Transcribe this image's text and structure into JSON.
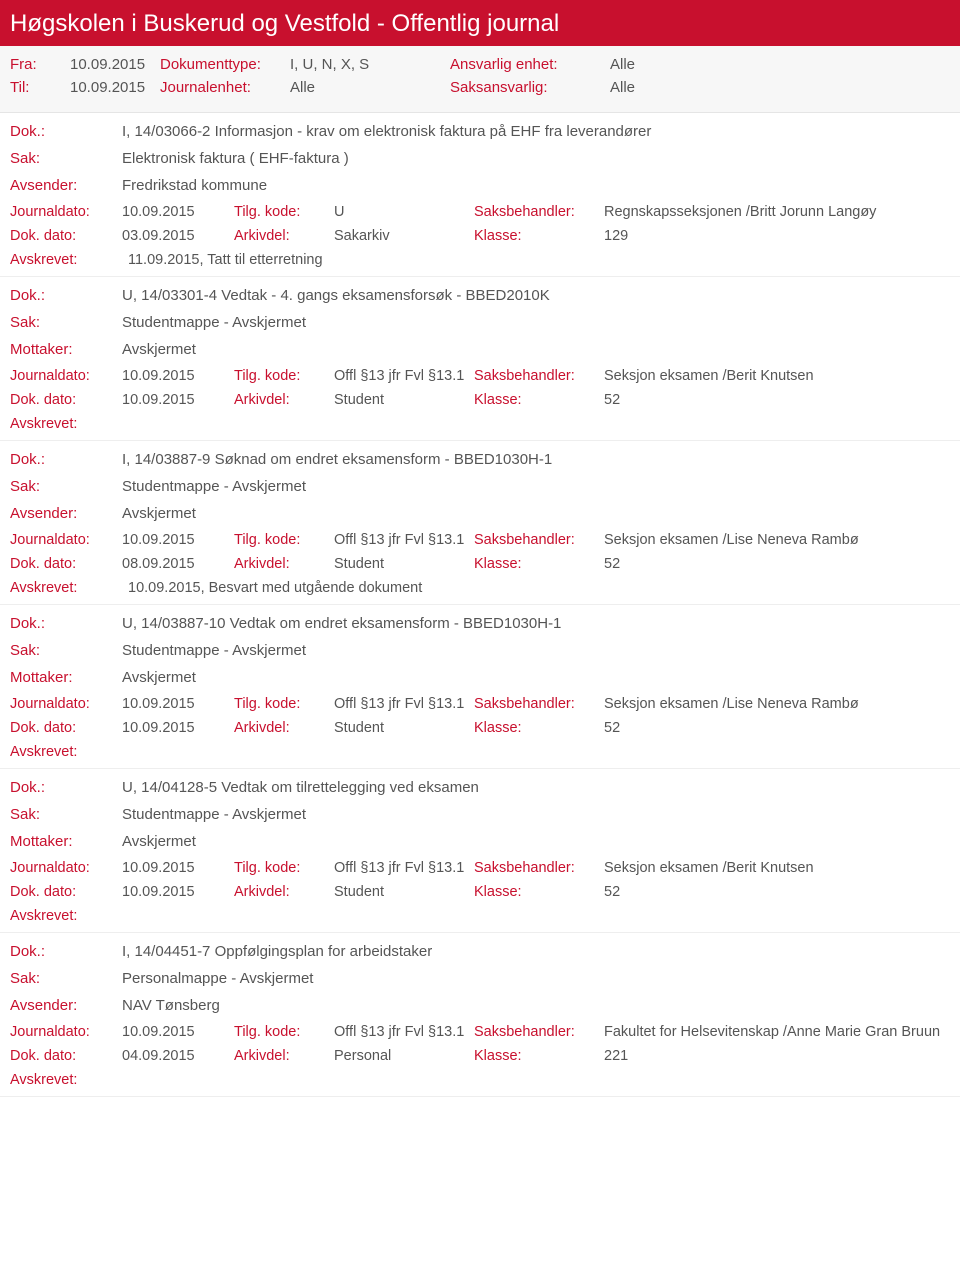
{
  "header": {
    "title": "Høgskolen i Buskerud og Vestfold - Offentlig journal"
  },
  "filters": {
    "fra_label": "Fra:",
    "fra_value": "10.09.2015",
    "til_label": "Til:",
    "til_value": "10.09.2015",
    "doktype_label": "Dokumenttype:",
    "doktype_value": "I, U, N, X, S",
    "journalenhet_label": "Journalenhet:",
    "journalenhet_value": "Alle",
    "ansvarlig_label": "Ansvarlig enhet:",
    "ansvarlig_value": "Alle",
    "saksansvarlig_label": "Saksansvarlig:",
    "saksansvarlig_value": "Alle"
  },
  "labels": {
    "dok": "Dok.:",
    "sak": "Sak:",
    "avsender": "Avsender:",
    "mottaker": "Mottaker:",
    "journaldato": "Journaldato:",
    "dokdato": "Dok. dato:",
    "tilgkode": "Tilg. kode:",
    "arkivdel": "Arkivdel:",
    "saksbehandler": "Saksbehandler:",
    "klasse": "Klasse:",
    "avskrevet": "Avskrevet:"
  },
  "entries": [
    {
      "dok": "I, 14/03066-2 Informasjon - krav om elektronisk faktura på EHF fra leverandører",
      "sak": "Elektronisk faktura ( EHF-faktura )",
      "party_label": "Avsender:",
      "party_value": "Fredrikstad kommune",
      "journaldato": "10.09.2015",
      "tilgkode": "U",
      "saksbehandler": "Regnskapsseksjonen /Britt Jorunn Langøy",
      "dokdato": "03.09.2015",
      "arkivdel": "Sakarkiv",
      "klasse": "129",
      "avskrevet": "11.09.2015, Tatt til etterretning"
    },
    {
      "dok": "U, 14/03301-4 Vedtak - 4. gangs eksamensforsøk - BBED2010K",
      "sak": "Studentmappe - Avskjermet",
      "party_label": "Mottaker:",
      "party_value": "Avskjermet",
      "journaldato": "10.09.2015",
      "tilgkode": "Offl §13 jfr Fvl §13.1",
      "saksbehandler": "Seksjon eksamen /Berit Knutsen",
      "dokdato": "10.09.2015",
      "arkivdel": "Student",
      "klasse": "52",
      "avskrevet": ""
    },
    {
      "dok": "I, 14/03887-9 Søknad om endret eksamensform - BBED1030H-1",
      "sak": "Studentmappe - Avskjermet",
      "party_label": "Avsender:",
      "party_value": "Avskjermet",
      "journaldato": "10.09.2015",
      "tilgkode": "Offl §13 jfr Fvl §13.1",
      "saksbehandler": "Seksjon eksamen /Lise Neneva Rambø",
      "dokdato": "08.09.2015",
      "arkivdel": "Student",
      "klasse": "52",
      "avskrevet": "10.09.2015, Besvart med utgående dokument"
    },
    {
      "dok": "U, 14/03887-10 Vedtak om endret eksamensform - BBED1030H-1",
      "sak": "Studentmappe - Avskjermet",
      "party_label": "Mottaker:",
      "party_value": "Avskjermet",
      "journaldato": "10.09.2015",
      "tilgkode": "Offl §13 jfr Fvl §13.1",
      "saksbehandler": "Seksjon eksamen /Lise Neneva Rambø",
      "dokdato": "10.09.2015",
      "arkivdel": "Student",
      "klasse": "52",
      "avskrevet": ""
    },
    {
      "dok": "U, 14/04128-5 Vedtak om tilrettelegging ved eksamen",
      "sak": "Studentmappe - Avskjermet",
      "party_label": "Mottaker:",
      "party_value": "Avskjermet",
      "journaldato": "10.09.2015",
      "tilgkode": "Offl §13 jfr Fvl §13.1",
      "saksbehandler": "Seksjon eksamen /Berit Knutsen",
      "dokdato": "10.09.2015",
      "arkivdel": "Student",
      "klasse": "52",
      "avskrevet": ""
    },
    {
      "dok": "I, 14/04451-7 Oppfølgingsplan for arbeidstaker",
      "sak": "Personalmappe - Avskjermet",
      "party_label": "Avsender:",
      "party_value": "NAV Tønsberg",
      "journaldato": "10.09.2015",
      "tilgkode": "Offl §13 jfr Fvl §13.1",
      "saksbehandler": "Fakultet for Helsevitenskap /Anne Marie Gran Bruun",
      "dokdato": "04.09.2015",
      "arkivdel": "Personal",
      "klasse": "221",
      "avskrevet": ""
    }
  ]
}
